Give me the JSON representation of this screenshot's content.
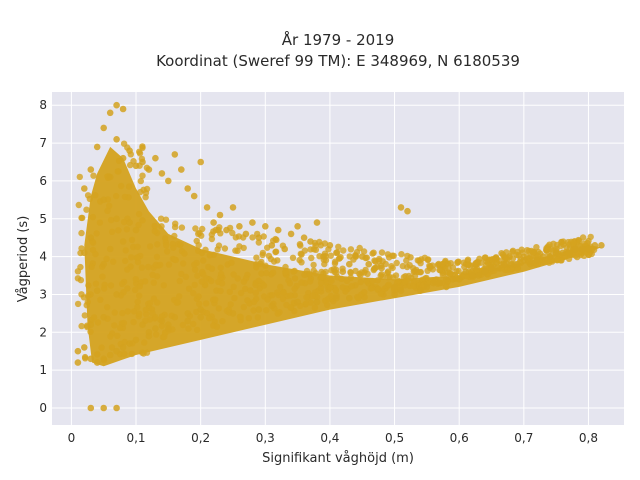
{
  "chart_data": {
    "type": "scatter",
    "title_line1": "År 1979 - 2019",
    "title_line2": "Koordinat (Sweref 99 TM): E 348969, N 6180539",
    "xlabel": "Signifikant våghöjd (m)",
    "ylabel": "Vågperiod (s)",
    "xlim": [
      -0.03,
      0.855
    ],
    "ylim": [
      -0.45,
      8.35
    ],
    "xticks": [
      0,
      0.1,
      0.2,
      0.3,
      0.4,
      0.5,
      0.6,
      0.7,
      0.8
    ],
    "xtick_labels": [
      "0",
      "0,1",
      "0,2",
      "0,3",
      "0,4",
      "0,5",
      "0,6",
      "0,7",
      "0,8"
    ],
    "yticks": [
      0,
      1,
      2,
      3,
      4,
      5,
      6,
      7,
      8
    ],
    "ytick_labels": [
      "0",
      "1",
      "2",
      "3",
      "4",
      "5",
      "6",
      "7",
      "8"
    ],
    "grid": true,
    "legend": "none",
    "marker_color": "#D4A21E",
    "background": "#E5E5EF",
    "series": [
      {
        "x": [
          0.01,
          0.01,
          0.02,
          0.02,
          0.02,
          0.03,
          0.03,
          0.03,
          0.03,
          0.04,
          0.04,
          0.04,
          0.05,
          0.05,
          0.05,
          0.05,
          0.05,
          0.06,
          0.06,
          0.06,
          0.06,
          0.07,
          0.07,
          0.07,
          0.07,
          0.07,
          0.08,
          0.08,
          0.08,
          0.08,
          0.09,
          0.09,
          0.09,
          0.1,
          0.1,
          0.1,
          0.11,
          0.11,
          0.12,
          0.12,
          0.13,
          0.13,
          0.14,
          0.14,
          0.15,
          0.15,
          0.16,
          0.16,
          0.17,
          0.18,
          0.18,
          0.19,
          0.2,
          0.2,
          0.21,
          0.22,
          0.23,
          0.24,
          0.25,
          0.26,
          0.27,
          0.28,
          0.29,
          0.3,
          0.31,
          0.32,
          0.33,
          0.34,
          0.35,
          0.36,
          0.37,
          0.38,
          0.39,
          0.4,
          0.41,
          0.42,
          0.43,
          0.44,
          0.45,
          0.46,
          0.47,
          0.48,
          0.49,
          0.5,
          0.51,
          0.52,
          0.53,
          0.54,
          0.55,
          0.56,
          0.57,
          0.58,
          0.59,
          0.6,
          0.61,
          0.62,
          0.63,
          0.64,
          0.65,
          0.66,
          0.67,
          0.68,
          0.69,
          0.7,
          0.71,
          0.72,
          0.73,
          0.74,
          0.75,
          0.76,
          0.77,
          0.78,
          0.79,
          0.8,
          0.81,
          0.82,
          0.03,
          0.05,
          0.07,
          0.12,
          0.15,
          0.18,
          0.2,
          0.25,
          0.29,
          0.31,
          0.35,
          0.38,
          0.41,
          0.43,
          0.5,
          0.51,
          0.58
        ],
        "y": [
          1.5,
          1.2,
          5.8,
          4.1,
          1.6,
          6.3,
          2.2,
          4.5,
          1.3,
          6.9,
          3.1,
          1.2,
          7.4,
          5.5,
          3.8,
          2.4,
          1.3,
          7.8,
          6.1,
          4.2,
          1.4,
          8.0,
          7.1,
          5.0,
          3.0,
          1.5,
          7.9,
          6.6,
          4.4,
          1.6,
          6.8,
          4.9,
          1.7,
          6.4,
          4.7,
          1.8,
          6.5,
          2.2,
          6.3,
          2.0,
          6.6,
          2.1,
          6.2,
          2.3,
          6.0,
          2.2,
          6.7,
          2.4,
          6.3,
          5.8,
          2.5,
          5.6,
          6.5,
          2.6,
          5.3,
          4.9,
          5.1,
          4.7,
          5.3,
          4.8,
          4.6,
          4.9,
          4.5,
          4.8,
          4.3,
          4.7,
          4.2,
          4.6,
          4.8,
          4.5,
          4.4,
          4.9,
          4.0,
          4.3,
          4.1,
          3.6,
          3.8,
          4.0,
          4.0,
          3.8,
          3.7,
          3.7,
          3.6,
          3.2,
          5.3,
          5.2,
          3.6,
          3.1,
          3.2,
          3.3,
          3.3,
          3.4,
          3.4,
          3.4,
          3.6,
          3.5,
          3.5,
          3.6,
          3.7,
          3.7,
          3.8,
          3.8,
          3.8,
          3.9,
          3.8,
          3.9,
          4.0,
          4.0,
          4.1,
          4.1,
          4.1,
          4.2,
          4.2,
          4.2,
          4.3,
          4.3,
          0.0,
          0.0,
          0.0,
          1.9,
          2.1,
          2.3,
          2.4,
          2.5,
          2.6,
          2.7,
          2.8,
          2.8,
          2.9,
          2.9,
          3.0,
          3.1,
          3.2
        ]
      }
    ]
  }
}
